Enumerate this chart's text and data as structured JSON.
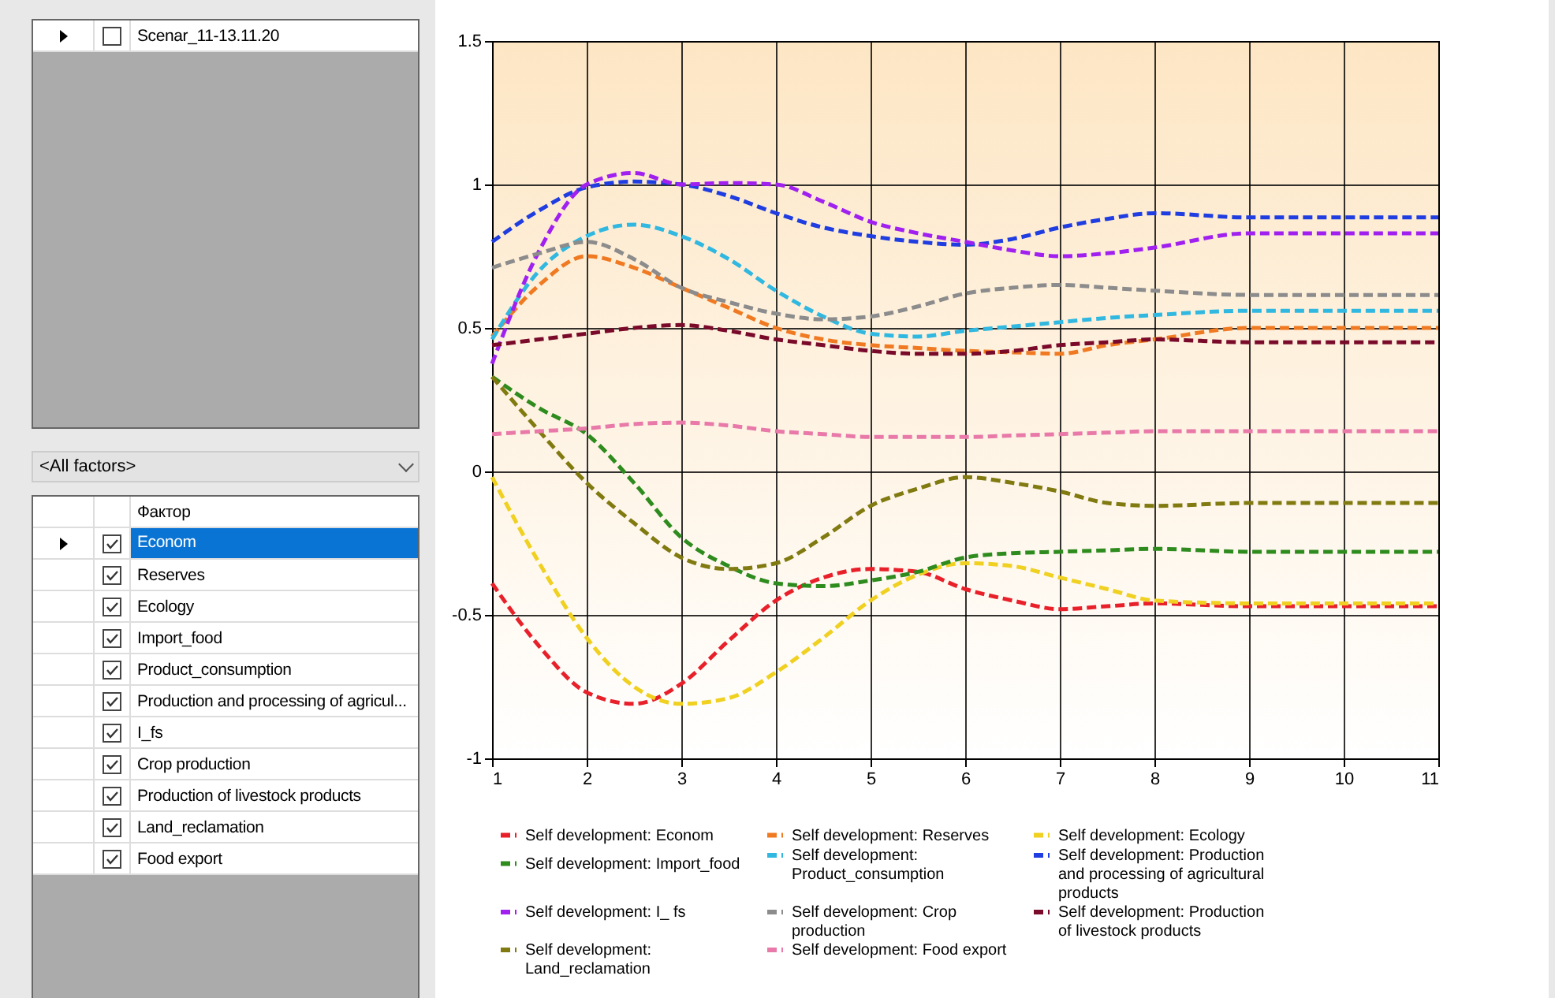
{
  "chart_data": {
    "type": "line",
    "x": [
      1,
      1.5,
      2,
      2.5,
      3,
      3.5,
      4,
      4.5,
      5,
      5.5,
      6,
      6.5,
      7,
      7.5,
      8,
      9,
      10,
      11
    ],
    "xlim": [
      1,
      11
    ],
    "xticks": [
      1,
      2,
      3,
      4,
      5,
      6,
      7,
      8,
      9,
      10,
      11
    ],
    "ylim": [
      -1,
      1.5
    ],
    "yticks": [
      -1,
      -0.5,
      0,
      0.5,
      1,
      1.5
    ],
    "grid": true,
    "legend": "bottom",
    "line_style": "dashed",
    "marker": "none",
    "annotations": [
      "Scenar_11-13.11.20",
      "<All factors>",
      "Фактор",
      "Econom",
      "Reserves",
      "Ecology",
      "Import_food",
      "Product_consumption",
      "Production and processing of agricul...",
      "I_fs",
      "Crop production",
      "Production of livestock products",
      "Land_reclamation",
      "Food export"
    ],
    "series": [
      {
        "name": "Self development: Econom",
        "color": "#e8202a",
        "values": [
          -0.39,
          -0.61,
          -0.77,
          -0.81,
          -0.74,
          -0.59,
          -0.45,
          -0.37,
          -0.34,
          -0.35,
          -0.41,
          -0.45,
          -0.48,
          -0.47,
          -0.46,
          -0.47,
          -0.47,
          -0.47
        ]
      },
      {
        "name": "Self development: Reserves",
        "color": "#f07a22",
        "values": [
          0.47,
          0.65,
          0.75,
          0.71,
          0.64,
          0.57,
          0.5,
          0.46,
          0.44,
          0.43,
          0.42,
          0.415,
          0.41,
          0.44,
          0.46,
          0.5,
          0.5,
          0.5
        ]
      },
      {
        "name": "Self development: Ecology",
        "color": "#f0d020",
        "values": [
          -0.02,
          -0.32,
          -0.58,
          -0.75,
          -0.81,
          -0.79,
          -0.7,
          -0.58,
          -0.45,
          -0.36,
          -0.32,
          -0.33,
          -0.37,
          -0.41,
          -0.45,
          -0.46,
          -0.46,
          -0.46
        ]
      },
      {
        "name": "Self development: Import_food",
        "color": "#2e8b1e",
        "values": [
          0.33,
          0.22,
          0.13,
          -0.04,
          -0.23,
          -0.33,
          -0.39,
          -0.4,
          -0.38,
          -0.35,
          -0.3,
          -0.285,
          -0.28,
          -0.275,
          -0.27,
          -0.28,
          -0.28,
          -0.28
        ]
      },
      {
        "name": "Self development: Product_consumption",
        "color": "#30b8e0",
        "values": [
          0.46,
          0.7,
          0.82,
          0.86,
          0.82,
          0.74,
          0.63,
          0.54,
          0.48,
          0.47,
          0.49,
          0.505,
          0.52,
          0.535,
          0.545,
          0.56,
          0.56,
          0.56
        ]
      },
      {
        "name": "Self development: Production and processing of agricultural products",
        "color": "#1f3de0",
        "values": [
          0.8,
          0.91,
          0.99,
          1.01,
          1.0,
          0.96,
          0.9,
          0.85,
          0.82,
          0.8,
          0.79,
          0.81,
          0.85,
          0.88,
          0.9,
          0.885,
          0.885,
          0.885
        ]
      },
      {
        "name": "Self development: I_ fs",
        "color": "#a020f0",
        "values": [
          0.375,
          0.77,
          1.0,
          1.04,
          1.0,
          1.005,
          1.0,
          0.94,
          0.87,
          0.83,
          0.8,
          0.77,
          0.75,
          0.76,
          0.78,
          0.83,
          0.83,
          0.83
        ]
      },
      {
        "name": "Self development: Crop production",
        "color": "#8c8c8c",
        "values": [
          0.71,
          0.76,
          0.8,
          0.74,
          0.64,
          0.59,
          0.55,
          0.53,
          0.54,
          0.575,
          0.62,
          0.64,
          0.65,
          0.64,
          0.63,
          0.615,
          0.615,
          0.615
        ]
      },
      {
        "name": "Self development: Production of livestock products",
        "color": "#7a0a2a",
        "values": [
          0.44,
          0.46,
          0.48,
          0.5,
          0.51,
          0.49,
          0.46,
          0.44,
          0.42,
          0.41,
          0.41,
          0.42,
          0.44,
          0.45,
          0.46,
          0.45,
          0.45,
          0.45
        ]
      },
      {
        "name": "Self development: Land_reclamation",
        "color": "#807a10",
        "values": [
          0.33,
          0.14,
          -0.04,
          -0.18,
          -0.3,
          -0.34,
          -0.32,
          -0.23,
          -0.12,
          -0.06,
          -0.02,
          -0.04,
          -0.07,
          -0.11,
          -0.12,
          -0.11,
          -0.11,
          -0.11
        ]
      },
      {
        "name": "Self development: Food export",
        "color": "#e879a8",
        "values": [
          0.13,
          0.14,
          0.15,
          0.165,
          0.17,
          0.16,
          0.14,
          0.13,
          0.12,
          0.12,
          0.12,
          0.125,
          0.13,
          0.135,
          0.14,
          0.14,
          0.14,
          0.14
        ]
      }
    ]
  }
}
